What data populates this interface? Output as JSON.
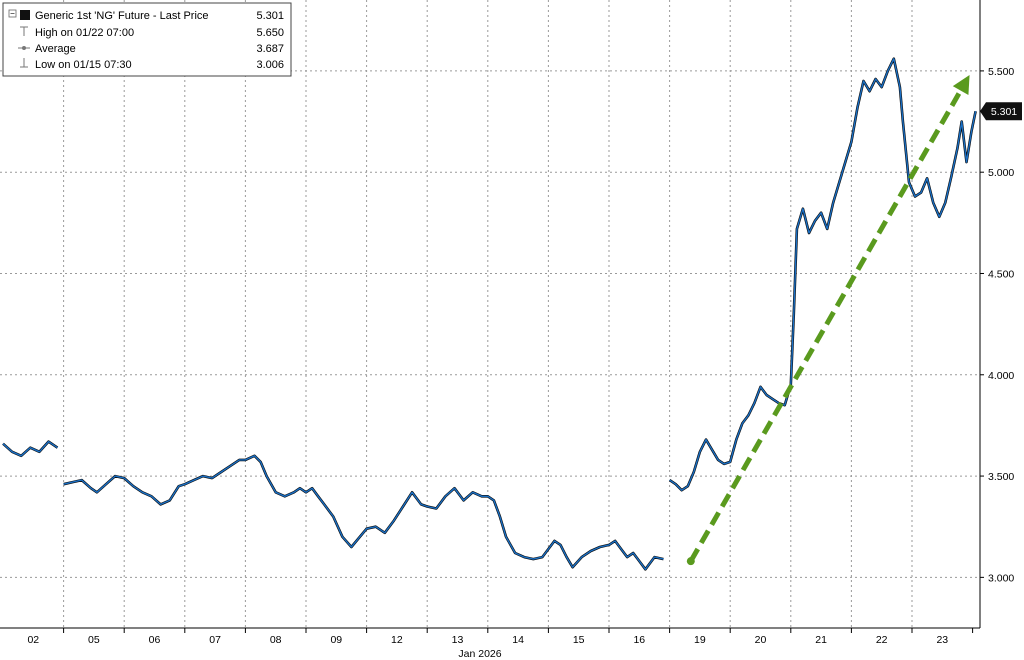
{
  "chart_data": {
    "type": "line",
    "title": "",
    "xlabel": "Jan 2026",
    "ylabel": "",
    "ylim": [
      2.75,
      5.85
    ],
    "y_ticks": [
      "3.000",
      "3.500",
      "4.000",
      "4.500",
      "5.000",
      "5.500"
    ],
    "y_tick_values": [
      3.0,
      3.5,
      4.0,
      4.5,
      5.0,
      5.5
    ],
    "x_ticks": [
      "02",
      "05",
      "06",
      "07",
      "08",
      "09",
      "12",
      "13",
      "14",
      "15",
      "16",
      "19",
      "20",
      "21",
      "22",
      "23"
    ],
    "grid": true,
    "legend_placement": "top-left",
    "legend": {
      "series_label": "Generic 1st 'NG' Future - Last Price",
      "series_value": "5.301",
      "high_label": "High on 01/22 07:00",
      "high_value": "5.650",
      "average_label": "Average",
      "average_value": "3.687",
      "low_label": "Low on 01/15 07:30",
      "low_value": "3.006"
    },
    "last_price_tag": "5.301",
    "colors": {
      "line": "#1a6fc4",
      "line_dark": "#0a0a0a",
      "arrow": "#5a9a1e",
      "tag_bg": "#111111"
    },
    "series": [
      {
        "name": "Generic 1st 'NG' Future - Last Price",
        "points": [
          [
            0.0,
            3.66
          ],
          [
            0.15,
            3.62
          ],
          [
            0.3,
            3.6
          ],
          [
            0.45,
            3.64
          ],
          [
            0.6,
            3.62
          ],
          [
            0.75,
            3.67
          ],
          [
            0.9,
            3.64
          ],
          [
            1.0,
            3.46
          ],
          [
            1.15,
            3.47
          ],
          [
            1.3,
            3.48
          ],
          [
            1.45,
            3.44
          ],
          [
            1.55,
            3.42
          ],
          [
            1.7,
            3.46
          ],
          [
            1.85,
            3.5
          ],
          [
            2.0,
            3.49
          ],
          [
            2.15,
            3.45
          ],
          [
            2.3,
            3.42
          ],
          [
            2.45,
            3.4
          ],
          [
            2.6,
            3.36
          ],
          [
            2.75,
            3.38
          ],
          [
            2.9,
            3.45
          ],
          [
            3.0,
            3.46
          ],
          [
            3.15,
            3.48
          ],
          [
            3.3,
            3.5
          ],
          [
            3.45,
            3.49
          ],
          [
            3.6,
            3.52
          ],
          [
            3.75,
            3.55
          ],
          [
            3.9,
            3.58
          ],
          [
            4.0,
            3.58
          ],
          [
            4.15,
            3.6
          ],
          [
            4.25,
            3.57
          ],
          [
            4.35,
            3.5
          ],
          [
            4.5,
            3.42
          ],
          [
            4.65,
            3.4
          ],
          [
            4.8,
            3.42
          ],
          [
            4.9,
            3.44
          ],
          [
            5.0,
            3.42
          ],
          [
            5.1,
            3.44
          ],
          [
            5.2,
            3.4
          ],
          [
            5.3,
            3.36
          ],
          [
            5.45,
            3.3
          ],
          [
            5.6,
            3.2
          ],
          [
            5.75,
            3.15
          ],
          [
            6.0,
            3.24
          ],
          [
            6.15,
            3.25
          ],
          [
            6.3,
            3.22
          ],
          [
            6.45,
            3.28
          ],
          [
            6.6,
            3.35
          ],
          [
            6.75,
            3.42
          ],
          [
            6.9,
            3.36
          ],
          [
            7.0,
            3.35
          ],
          [
            7.15,
            3.34
          ],
          [
            7.3,
            3.4
          ],
          [
            7.45,
            3.44
          ],
          [
            7.6,
            3.38
          ],
          [
            7.75,
            3.42
          ],
          [
            7.9,
            3.4
          ],
          [
            8.0,
            3.4
          ],
          [
            8.1,
            3.38
          ],
          [
            8.2,
            3.3
          ],
          [
            8.3,
            3.2
          ],
          [
            8.45,
            3.12
          ],
          [
            8.6,
            3.1
          ],
          [
            8.75,
            3.09
          ],
          [
            8.9,
            3.1
          ],
          [
            9.0,
            3.14
          ],
          [
            9.1,
            3.18
          ],
          [
            9.2,
            3.16
          ],
          [
            9.3,
            3.1
          ],
          [
            9.4,
            3.05
          ],
          [
            9.55,
            3.1
          ],
          [
            9.7,
            3.13
          ],
          [
            9.85,
            3.15
          ],
          [
            10.0,
            3.16
          ],
          [
            10.1,
            3.18
          ],
          [
            10.2,
            3.14
          ],
          [
            10.3,
            3.1
          ],
          [
            10.4,
            3.12
          ],
          [
            10.5,
            3.08
          ],
          [
            10.6,
            3.04
          ],
          [
            10.75,
            3.1
          ],
          [
            10.9,
            3.09
          ],
          [
            11.0,
            3.48
          ],
          [
            11.1,
            3.46
          ],
          [
            11.2,
            3.43
          ],
          [
            11.3,
            3.45
          ],
          [
            11.4,
            3.52
          ],
          [
            11.5,
            3.62
          ],
          [
            11.6,
            3.68
          ],
          [
            11.7,
            3.63
          ],
          [
            11.8,
            3.58
          ],
          [
            11.9,
            3.56
          ],
          [
            12.0,
            3.57
          ],
          [
            12.1,
            3.68
          ],
          [
            12.2,
            3.76
          ],
          [
            12.3,
            3.8
          ],
          [
            12.4,
            3.86
          ],
          [
            12.5,
            3.94
          ],
          [
            12.6,
            3.9
          ],
          [
            12.7,
            3.88
          ],
          [
            12.8,
            3.86
          ],
          [
            12.9,
            3.85
          ],
          [
            13.0,
            3.95
          ],
          [
            13.05,
            4.3
          ],
          [
            13.1,
            4.72
          ],
          [
            13.2,
            4.82
          ],
          [
            13.3,
            4.7
          ],
          [
            13.4,
            4.76
          ],
          [
            13.5,
            4.8
          ],
          [
            13.6,
            4.72
          ],
          [
            13.7,
            4.85
          ],
          [
            13.8,
            4.95
          ],
          [
            13.9,
            5.05
          ],
          [
            14.0,
            5.15
          ],
          [
            14.1,
            5.32
          ],
          [
            14.2,
            5.45
          ],
          [
            14.3,
            5.4
          ],
          [
            14.4,
            5.46
          ],
          [
            14.5,
            5.42
          ],
          [
            14.6,
            5.5
          ],
          [
            14.7,
            5.56
          ],
          [
            14.8,
            5.42
          ],
          [
            14.85,
            5.25
          ],
          [
            14.95,
            4.95
          ],
          [
            15.05,
            4.88
          ],
          [
            15.15,
            4.9
          ],
          [
            15.25,
            4.97
          ],
          [
            15.35,
            4.85
          ],
          [
            15.45,
            4.78
          ],
          [
            15.55,
            4.85
          ],
          [
            15.65,
            4.98
          ],
          [
            15.75,
            5.12
          ],
          [
            15.82,
            5.25
          ],
          [
            15.9,
            5.05
          ],
          [
            15.98,
            5.2
          ],
          [
            16.05,
            5.301
          ]
        ]
      }
    ],
    "arrow": {
      "from": [
        11.35,
        3.08
      ],
      "to": [
        15.95,
        5.48
      ]
    }
  }
}
